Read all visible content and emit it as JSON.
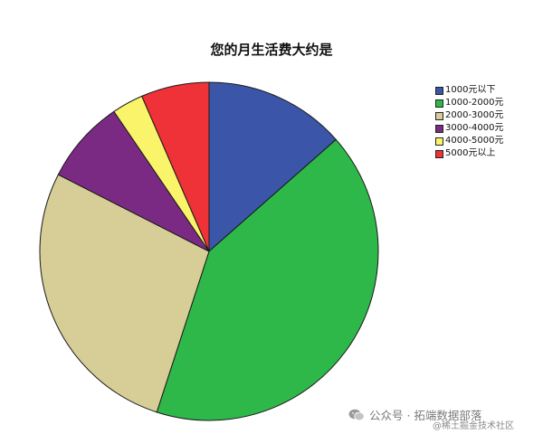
{
  "chart_data": {
    "type": "pie",
    "title": "您的月生活费大约是",
    "categories": [
      "1000元以下",
      "1000-2000元",
      "2000-3000元",
      "3000-4000元",
      "4000-5000元",
      "5000元以上"
    ],
    "values": [
      13.5,
      41.5,
      27.5,
      8.0,
      3.0,
      6.5
    ],
    "colors": [
      "#3b55a8",
      "#2eb84a",
      "#d6cd97",
      "#7b2a84",
      "#faf46a",
      "#ee3238"
    ],
    "start": "12 o'clock",
    "direction": "clockwise",
    "legend_placement": "top-right"
  },
  "watermark": {
    "text": "公众号 · 拓端数据部落",
    "sub": "@稀土掘金技术社区",
    "icon": "wechat-icon"
  }
}
